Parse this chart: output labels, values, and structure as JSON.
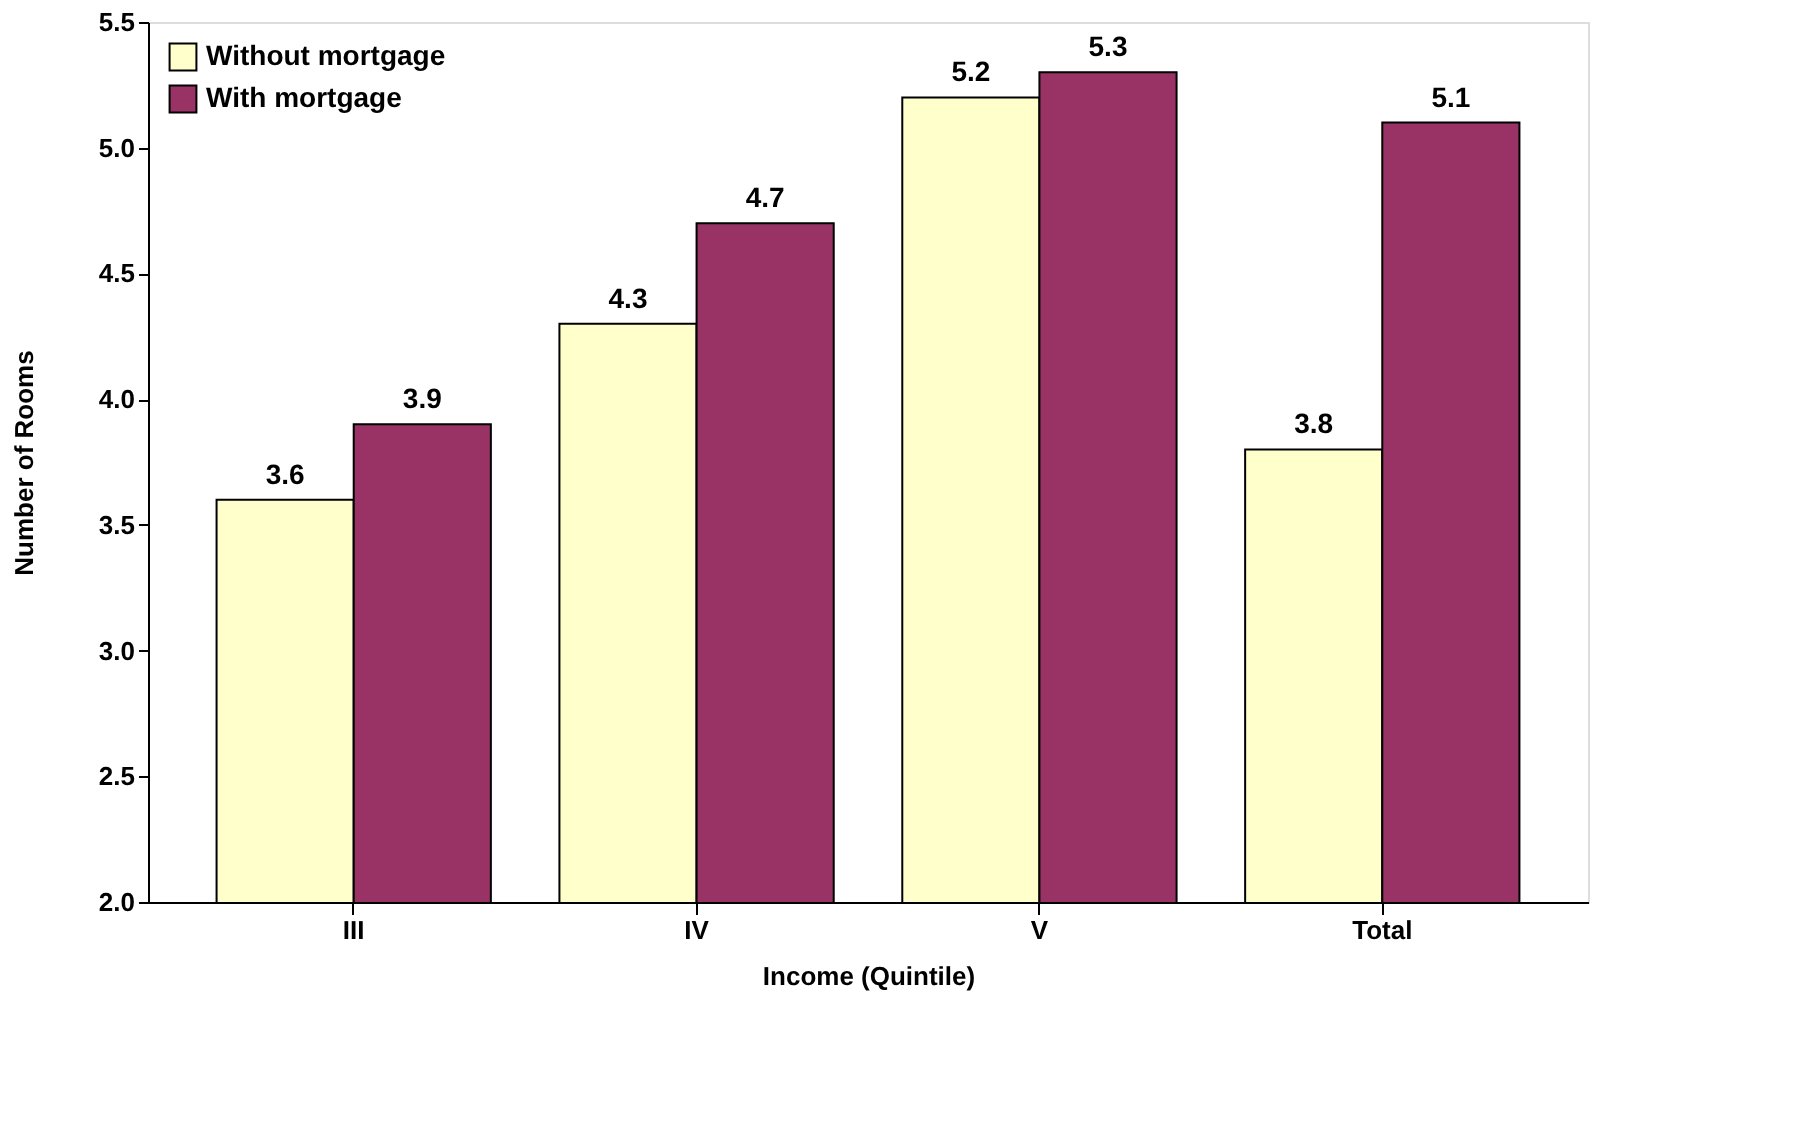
{
  "chart_data": {
    "type": "bar",
    "xlabel": "Income (Quintile)",
    "ylabel": "Number of Rooms",
    "categories": [
      "III",
      "IV",
      "V",
      "Total"
    ],
    "series": [
      {
        "name": "Without mortgage",
        "color": "#ffffcc",
        "values": [
          3.6,
          4.3,
          5.2,
          3.8
        ]
      },
      {
        "name": "With mortgage",
        "color": "#993366",
        "values": [
          3.9,
          4.7,
          5.3,
          5.1
        ]
      }
    ],
    "ylim": [
      2.0,
      5.5
    ],
    "yticks": [
      {
        "value": 2,
        "label": "2.0"
      },
      {
        "value": 2.5,
        "label": "2.5"
      },
      {
        "value": 3,
        "label": "3.0"
      },
      {
        "value": 3.5,
        "label": "3.5"
      },
      {
        "value": 4,
        "label": "4.0"
      },
      {
        "value": 4.5,
        "label": "4.5"
      },
      {
        "value": 5,
        "label": "5.0"
      },
      {
        "value": 5.5,
        "label": "5.5"
      }
    ],
    "data_labels": true,
    "legend": "top left",
    "grid": false
  }
}
